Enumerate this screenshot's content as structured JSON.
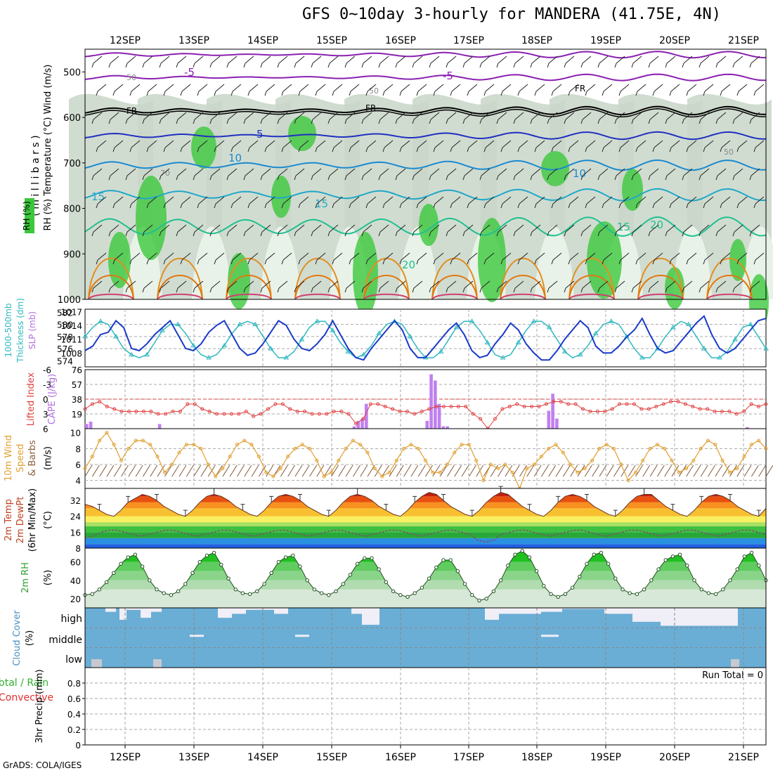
{
  "title": "GFS 0~10day 3-hourly for MANDERA (41.75E, 4N)",
  "credit": "GrADS: COLA/IGES",
  "date_labels": [
    "12SEP",
    "13SEP",
    "14SEP",
    "15SEP",
    "16SEP",
    "17SEP",
    "18SEP",
    "19SEP",
    "20SEP",
    "21SEP"
  ],
  "panel_labels": {
    "p1": {
      "a": "RH (%)",
      "b": "Temperature",
      "c": "(°C)",
      "d": "Wind (m/s)",
      "e": "( m i l l i b a r s )"
    },
    "p2": {
      "a": "1000-500mb",
      "b": "Thickness (dm)",
      "c": "SLP (mb)"
    },
    "p3": {
      "a": "Lifted Index",
      "b": "CAPE (J/kg)"
    },
    "p4": {
      "a": "10m Wind",
      "b": "Speed",
      "c": "& Barbs",
      "d": "(m/s)"
    },
    "p5": {
      "a": "2m Temp",
      "b": "2m DewPt",
      "c": "(6hr Min/Max)",
      "d": "(°C)"
    },
    "p6": {
      "a": "2m RH",
      "b": "(%)"
    },
    "p7": {
      "a": "Cloud Cover",
      "b": "(%)",
      "high": "high",
      "middle": "middle",
      "low": "low"
    },
    "p8": {
      "a": "Total / Rain",
      "b": "Convective",
      "c": "3hr Precip (mm)",
      "run_total": "Run Total = 0"
    }
  },
  "contour_labels": {
    "fr": "FR",
    "m5": "-5",
    "t5": "5",
    "t10": "10",
    "t15": "15",
    "t20": "20",
    "rh50": "50",
    "rh70": "70"
  },
  "colors": {
    "temp_warm": "#e07800",
    "temp_mid": "#20c090",
    "temp_cool": "#1a8ad0",
    "temp_cold": "#2030c0",
    "temp_neg": "#8a20b0",
    "freezing": "#000000",
    "rh_fill": "#3cc83c",
    "rh_light": "#c8d8c8",
    "slp": "#1a3ac8",
    "thickness": "#30b8c0",
    "li": "#e04040",
    "cape": "#c080f0",
    "wind": "#e0a030",
    "temp2m": "#e05010",
    "dewpt": "#40c040",
    "rh2m": "#30c030",
    "cloud": "#6aaed6",
    "cloud_clear": "#f0eef6"
  },
  "chart_data": [
    {
      "type": "heatmap",
      "title": "Temperature (°C), RH (%), Wind (m/s)",
      "ylabel": "millibars",
      "y_ticks": [
        500,
        600,
        700,
        800,
        900,
        1000
      ],
      "ylim": [
        1000,
        450
      ],
      "x": [
        "12SEP",
        "13SEP",
        "14SEP",
        "15SEP",
        "16SEP",
        "17SEP",
        "18SEP",
        "19SEP",
        "20SEP",
        "21SEP"
      ],
      "temperature_contours": [
        -5,
        0,
        5,
        10,
        15,
        20
      ]
    },
    {
      "type": "line",
      "x_days": 10,
      "left_axis": {
        "label": "1000-500mb Thickness (dm)",
        "ticks": [
          574,
          576,
          578,
          580,
          582
        ]
      },
      "right_axis": {
        "label": "SLP (mb)",
        "ticks": [
          1008,
          1011,
          1014,
          1017
        ]
      },
      "series": [
        {
          "name": "SLP (mb)",
          "values": [
            1008.5,
            1009.5,
            1012,
            1012.5,
            1015,
            1013.5,
            1009,
            1008.5,
            1010,
            1012,
            1013.5,
            1015,
            1012,
            1009,
            1008.5,
            1010,
            1012.5,
            1014,
            1015,
            1012,
            1009,
            1007.5,
            1008,
            1010,
            1012.5,
            1015,
            1014,
            1011,
            1009,
            1008.5,
            1010,
            1012,
            1015,
            1012,
            1009,
            1007,
            1006.5,
            1009,
            1011,
            1013,
            1015,
            1013,
            1009,
            1007,
            1007,
            1009,
            1011,
            1013,
            1014.5,
            1012,
            1008.5,
            1007,
            1007.5,
            1010,
            1012,
            1014.5,
            1013,
            1010,
            1008,
            1006.5,
            1006.5,
            1008.5,
            1011,
            1013,
            1015,
            1013.5,
            1009.5,
            1008,
            1008,
            1009.5,
            1011.5,
            1013,
            1015.5,
            1012,
            1009,
            1008,
            1008.5,
            1010.5,
            1012.5,
            1014.5,
            1016,
            1012,
            1009,
            1008,
            1009,
            1011,
            1013,
            1015,
            1015.5
          ]
        },
        {
          "name": "1000-500mb Thickness (dm)",
          "values": [
            578,
            579.5,
            580.5,
            580,
            578,
            576,
            575,
            574.5,
            575,
            577,
            579,
            580,
            580,
            578.5,
            576.5,
            575,
            574.5,
            575,
            576.5,
            578.5,
            580,
            580.5,
            580,
            578,
            576,
            574.5,
            574.5,
            575.5,
            577.5,
            579.5,
            580.5,
            580.5,
            579,
            577,
            575.5,
            574.5,
            575,
            576.5,
            578.5,
            580,
            580.5,
            580,
            578,
            576,
            574.5,
            574.5,
            575.5,
            577.5,
            579.5,
            580.5,
            580.5,
            579,
            577,
            575,
            574.5,
            575,
            577,
            579,
            580.5,
            580.5,
            579.5,
            577.5,
            575.5,
            574.5,
            575,
            576.5,
            578.5,
            580,
            580.5,
            580,
            578,
            576,
            574.5,
            574.5,
            576,
            578,
            579.5,
            580.5,
            580,
            578,
            576,
            574.5,
            574.5,
            575.5,
            577.5,
            579.5,
            580,
            578,
            576
          ]
        }
      ]
    },
    {
      "type": "bar",
      "left_axis": {
        "label": "Lifted Index",
        "ticks": [
          6,
          3,
          0,
          -3,
          -6
        ]
      },
      "right_axis": {
        "label": "CAPE (J/kg)",
        "ticks": [
          19,
          38,
          57,
          76
        ]
      },
      "series": [
        {
          "name": "CAPE (J/kg)",
          "values": [
            6,
            9,
            0,
            0,
            0,
            0,
            0,
            0,
            0,
            0,
            0,
            0,
            0,
            0,
            0,
            0,
            0,
            0,
            6,
            0,
            0,
            0,
            0,
            0,
            0,
            0,
            0,
            0,
            0,
            0,
            0,
            0,
            0,
            0,
            0,
            0,
            0,
            0,
            0,
            0,
            0,
            0,
            0,
            0,
            0,
            0,
            0,
            0,
            0,
            0,
            0,
            0,
            0,
            0,
            0,
            0,
            0,
            0,
            0,
            0,
            0,
            0,
            0,
            0,
            0,
            0,
            3,
            10,
            13,
            32,
            0,
            0,
            0,
            0,
            0,
            0,
            0,
            0,
            0,
            0,
            0,
            0,
            0,
            0,
            10,
            70,
            62,
            32,
            3,
            3,
            0,
            0,
            0,
            0,
            0,
            0,
            0,
            0,
            0,
            0,
            0,
            0,
            0,
            0,
            0,
            0,
            0,
            0,
            0,
            0,
            0,
            0,
            0,
            0,
            23,
            45,
            13,
            0,
            0,
            0,
            0,
            0,
            0,
            0,
            0,
            0,
            0,
            0,
            0,
            0,
            0,
            0,
            0,
            0,
            0,
            0,
            0,
            0,
            0,
            0,
            0,
            0,
            0,
            0,
            0,
            0,
            0,
            0,
            0,
            0,
            0,
            0,
            0,
            0,
            0,
            0,
            0,
            0,
            0,
            0,
            0,
            0,
            0,
            2,
            0,
            0,
            0,
            0
          ]
        },
        {
          "name": "Lifted Index",
          "values": [
            2,
            1,
            0.5,
            1.5,
            2,
            2.5,
            2.5,
            2.5,
            2.5,
            2.5,
            3,
            3,
            2.5,
            2.5,
            1,
            1,
            2,
            2.5,
            3,
            3,
            3,
            3,
            2.5,
            3.5,
            3,
            2,
            1,
            1,
            2,
            2.5,
            2.5,
            3,
            3,
            3,
            2.5,
            2.5,
            3,
            5,
            4,
            1,
            1,
            1.5,
            2,
            2.5,
            2.5,
            3,
            2.5,
            2,
            1.5,
            1.5,
            1.5,
            1.5,
            1.5,
            3,
            4,
            6,
            4,
            2,
            1.5,
            1,
            1.5,
            1.5,
            1.5,
            1,
            0.5,
            0.5,
            1,
            1,
            2,
            2.5,
            2.5,
            2.5,
            2,
            1,
            1,
            1,
            2,
            2,
            1.5,
            1,
            0.5,
            0.5,
            1,
            1.5,
            2,
            2,
            2.5,
            2.5,
            2.5,
            3,
            2.5,
            1,
            1.5,
            1
          ]
        }
      ]
    },
    {
      "type": "line",
      "ylabel": "(m/s)",
      "y_ticks": [
        4,
        6,
        8,
        10
      ],
      "ylim": [
        3,
        10
      ],
      "series": [
        {
          "name": "10m Wind Speed",
          "values": [
            5.5,
            7,
            9,
            10,
            8.5,
            6.5,
            8,
            9,
            9,
            8.5,
            7,
            5,
            6,
            7.5,
            8.5,
            8.5,
            8,
            6,
            4.5,
            5.5,
            7,
            8.5,
            9,
            8.5,
            7,
            5,
            4.5,
            5.5,
            7,
            8,
            8.5,
            8,
            6.5,
            4.5,
            5,
            6.5,
            8,
            9,
            8.5,
            7.5,
            5.5,
            4.5,
            5,
            6.5,
            8,
            8.5,
            8,
            6.5,
            5,
            5,
            6,
            7.5,
            8.5,
            8.5,
            6.5,
            4,
            6,
            5.5,
            6,
            5,
            3,
            5.5,
            6,
            7,
            8,
            8.5,
            7.5,
            6,
            5,
            5.5,
            6.5,
            8,
            8.5,
            8,
            6,
            4,
            5,
            6.5,
            8,
            8.5,
            8,
            6.5,
            5,
            5.5,
            6.5,
            8,
            9,
            8.5,
            6.5,
            5,
            5.5,
            7,
            8.5,
            9,
            8
          ]
        }
      ]
    },
    {
      "type": "area",
      "ylabel": "(°C)",
      "y_ticks": [
        8,
        16,
        24,
        32
      ],
      "ylim": [
        8,
        38
      ],
      "series": [
        {
          "name": "2m Temp",
          "values": [
            30,
            29,
            27,
            25,
            24,
            27,
            31,
            33,
            35,
            34,
            32,
            29,
            27,
            25,
            24,
            27,
            31,
            34,
            35,
            34,
            32,
            29,
            27,
            25,
            24,
            27,
            31,
            34,
            35,
            34,
            32,
            29,
            27,
            25,
            24,
            27,
            31,
            34,
            35,
            34,
            32,
            29,
            27,
            25,
            24,
            27,
            31,
            34,
            36,
            35,
            32,
            29,
            27,
            25,
            24,
            27,
            31,
            34,
            36,
            35,
            32,
            29,
            27,
            25,
            24,
            27,
            31,
            34,
            35,
            34,
            32,
            29,
            27,
            25,
            24,
            27,
            31,
            34,
            35,
            35,
            32,
            29,
            27,
            25,
            24,
            27,
            31,
            34,
            35,
            34,
            32,
            29,
            27,
            25,
            24,
            28
          ]
        },
        {
          "name": "2m DewPt",
          "values": [
            13,
            14,
            16,
            17,
            17,
            16,
            15,
            14,
            15,
            16,
            17,
            17,
            16,
            15,
            14,
            15,
            16,
            17,
            17,
            16,
            15,
            14,
            15,
            16,
            17,
            17,
            16,
            15,
            14,
            15,
            16,
            17,
            17,
            16,
            15,
            14,
            15,
            16,
            17,
            17,
            16,
            15,
            14,
            15,
            16,
            17,
            17,
            16,
            15,
            12,
            11,
            12,
            15,
            16,
            17,
            17,
            16,
            15,
            14,
            15,
            16,
            17,
            17,
            16,
            15,
            14,
            15,
            16,
            17,
            17,
            16,
            15,
            14,
            15,
            16,
            17,
            17,
            16,
            15,
            14,
            15,
            16,
            17,
            17,
            16,
            15
          ]
        }
      ]
    },
    {
      "type": "area",
      "ylabel": "(%)",
      "y_ticks": [
        20,
        40,
        60
      ],
      "ylim": [
        10,
        75
      ],
      "series": [
        {
          "name": "2m RH",
          "values": [
            24,
            25,
            30,
            38,
            48,
            58,
            65,
            68,
            55,
            40,
            30,
            26,
            24,
            28,
            36,
            48,
            60,
            67,
            70,
            57,
            42,
            30,
            26,
            25,
            28,
            36,
            48,
            60,
            65,
            67,
            55,
            40,
            30,
            26,
            24,
            28,
            36,
            46,
            58,
            64,
            64,
            52,
            38,
            28,
            24,
            22,
            26,
            32,
            42,
            54,
            62,
            62,
            50,
            36,
            24,
            18,
            20,
            28,
            40,
            56,
            68,
            72,
            65,
            50,
            34,
            25,
            22,
            25,
            32,
            44,
            58,
            68,
            70,
            58,
            42,
            30,
            26,
            25,
            30,
            40,
            52,
            62,
            66,
            68,
            56,
            40,
            30,
            26,
            25,
            30,
            40,
            52,
            66,
            70,
            56,
            40
          ]
        }
      ]
    },
    {
      "type": "bar",
      "categories": [
        "high",
        "middle",
        "low"
      ],
      "ylabel": "(%)"
    },
    {
      "type": "bar",
      "ylabel": "3hr Precip (mm)",
      "y_ticks": [
        0,
        0.2,
        0.4,
        0.6,
        0.8
      ],
      "ylim": [
        0,
        1
      ],
      "series": [
        {
          "name": "Total / Rain",
          "values": []
        },
        {
          "name": "Convective",
          "values": []
        }
      ],
      "annotation": "Run Total = 0"
    }
  ]
}
